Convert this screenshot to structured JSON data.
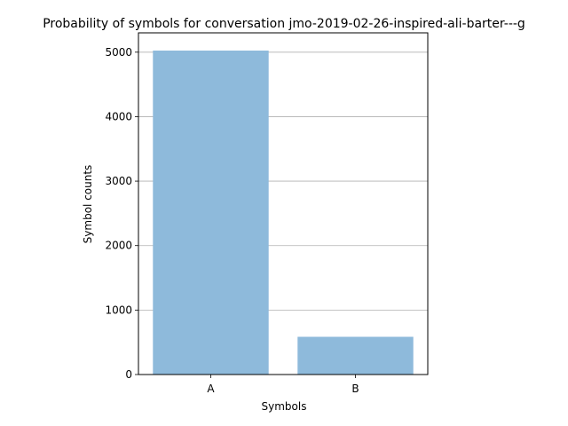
{
  "chart_data": {
    "type": "bar",
    "title": "Probability of symbols for conversation jmo-2019-02-26-inspired-ali-barter---g",
    "xlabel": "Symbols",
    "ylabel": "Symbol counts",
    "categories": [
      "A",
      "B"
    ],
    "values": [
      5025,
      585
    ],
    "ylim": [
      0,
      5300
    ],
    "yticks": [
      0,
      1000,
      2000,
      3000,
      4000,
      5000
    ],
    "grid": "y-major",
    "legend": "none",
    "colors": {
      "bar": "#8ebadb",
      "grid": "#b0b0b0",
      "axis": "#000000"
    }
  }
}
